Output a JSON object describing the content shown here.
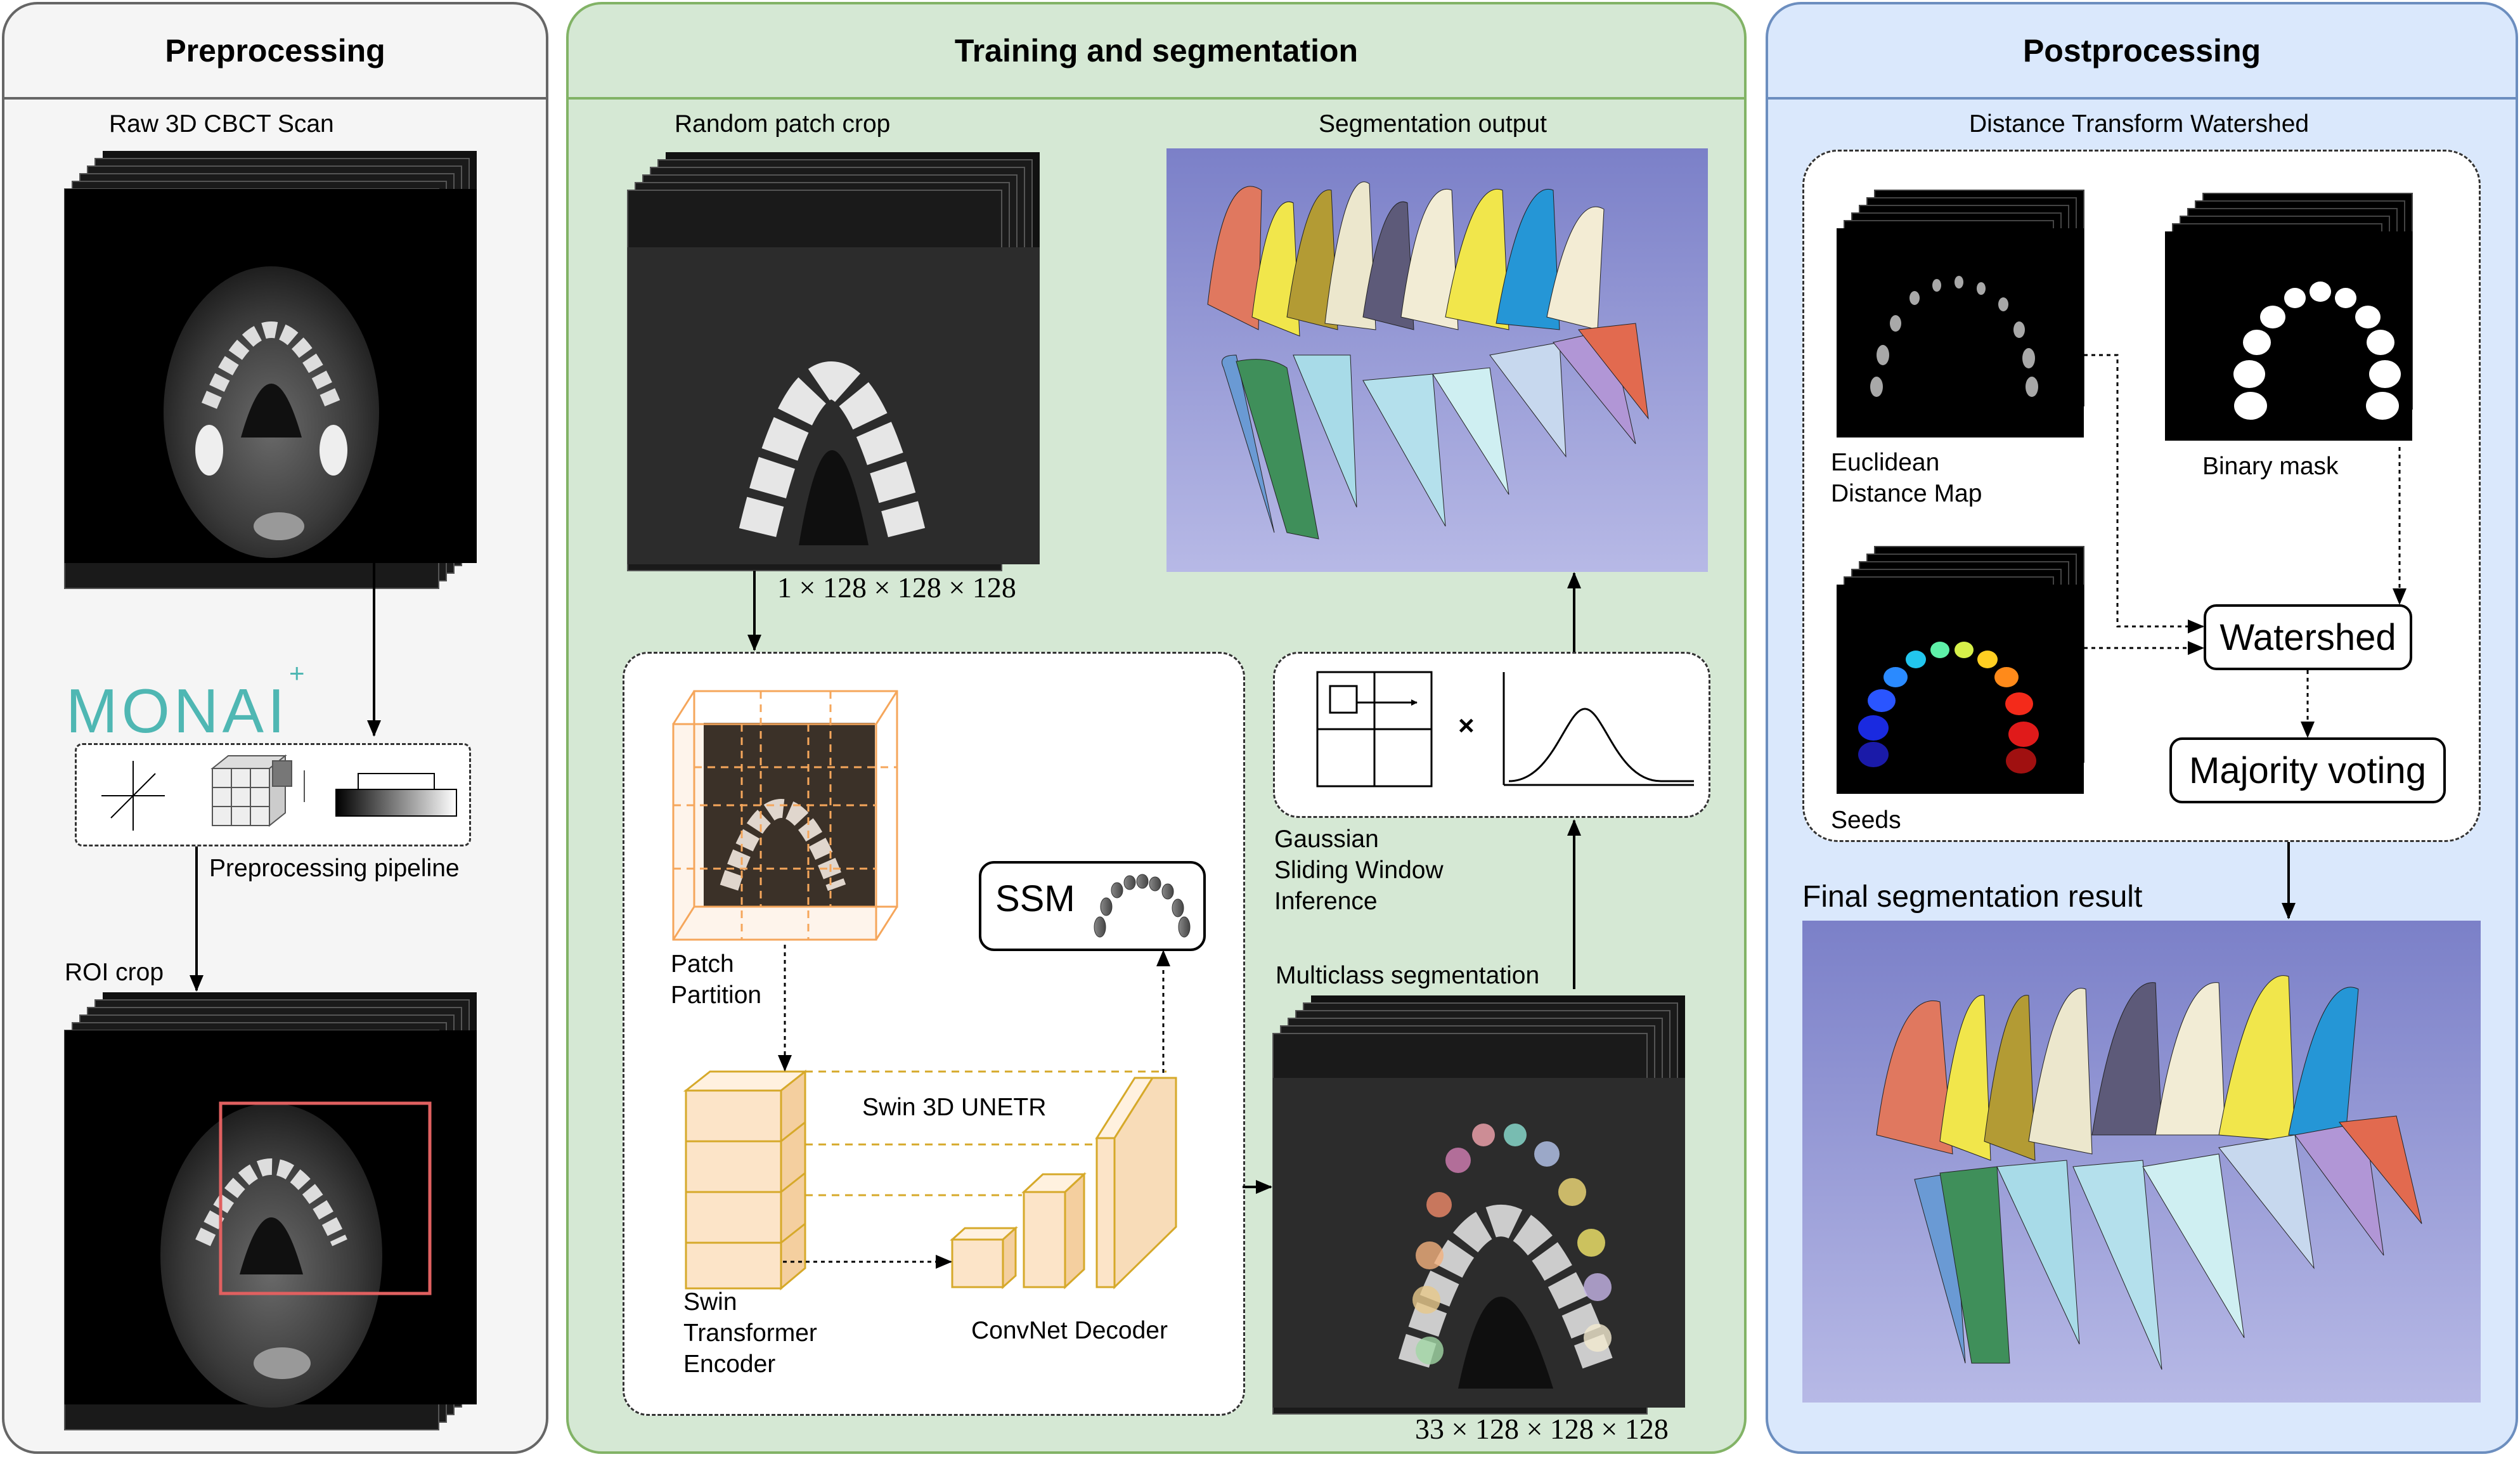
{
  "panels": {
    "preprocessing": {
      "title": "Preprocessing",
      "raw_scan_label": "Raw 3D CBCT Scan",
      "monai_logo_text": "MONAI",
      "pipeline_label": "Preprocessing pipeline",
      "roi_label": "ROI crop"
    },
    "training": {
      "title": "Training and segmentation",
      "patch_crop_label": "Random patch crop",
      "patch_dims": "1 × 128 × 128 × 128",
      "output_label": "Segmentation output",
      "patch_partition_label": [
        "Patch",
        "Partition"
      ],
      "ssm_label": "SSM",
      "unetr_label": "Swin 3D UNETR",
      "encoder_label": [
        "Swin",
        "Transformer",
        "Encoder"
      ],
      "decoder_label": "ConvNet Decoder",
      "gaussian_label": [
        "Gaussian",
        "Sliding Window",
        "Inference"
      ],
      "times_symbol": "×",
      "multiclass_label": "Multiclass segmentation",
      "multiclass_dims": "33 × 128 × 128 × 128"
    },
    "postprocessing": {
      "title": "Postprocessing",
      "watershed_group_label": "Distance Transform Watershed",
      "edm_label": [
        "Euclidean",
        "Distance Map"
      ],
      "binary_mask_label": "Binary mask",
      "seeds_label": "Seeds",
      "watershed_label": "Watershed",
      "majority_label": "Majority voting",
      "final_label": "Final segmentation result"
    }
  },
  "colors": {
    "preprocessing_bg": "#f5f5f5",
    "preprocessing_border": "#666666",
    "training_bg": "#d5e8d4",
    "training_border": "#82b366",
    "postprocessing_bg": "#dae8fc",
    "postprocessing_border": "#6c8ebf",
    "monai_teal": "#4fb7b3",
    "patch_orange": "#f5a65b",
    "unetr_gold": "#d6a92a",
    "roi_red": "#e06060"
  }
}
